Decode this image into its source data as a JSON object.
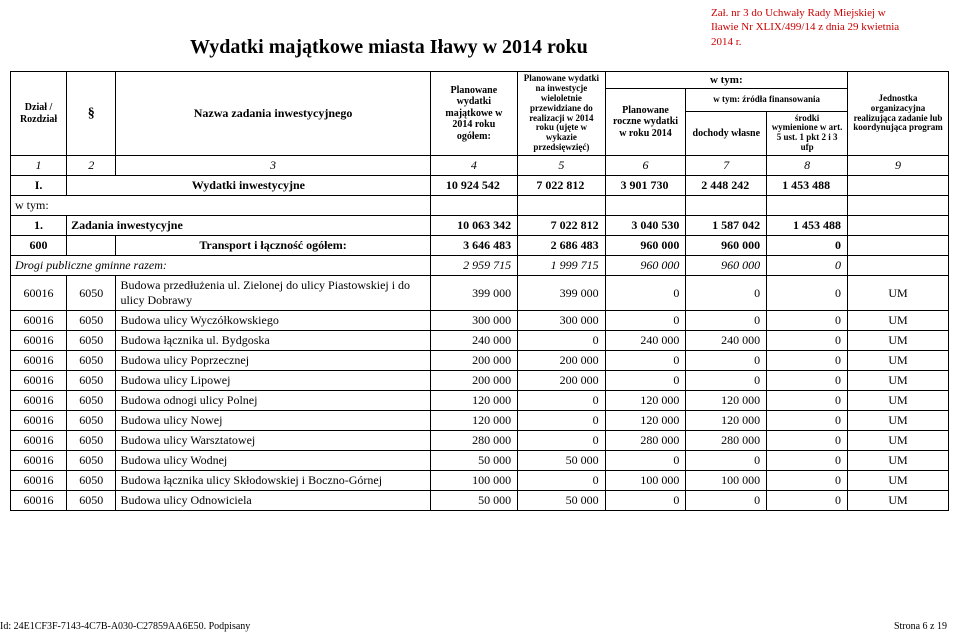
{
  "attachment": {
    "line1": "Zał. nr 3 do Uchwały Rady Miejskiej w",
    "line2": "Iławie Nr XLIX/499/14  z dnia 29 kwietnia",
    "line3": "2014 r."
  },
  "title": "Wydatki majątkowe miasta Iławy w 2014 roku",
  "header": {
    "dzial_rozdzial": "Dział / Rozdział",
    "paragraph_symbol": "§",
    "nazwa": "Nazwa zadania inwestycyjnego",
    "planowane_wydatki_ogolem": "Planowane wydatki majątkowe w 2014 roku ogółem:",
    "planowane_wydatki_inwestycje": "Planowane wydatki na inwestycje wieloletnie przewidziane do realizacji w 2014 roku (ujęte w wykazie przedsięwzięć)",
    "planowane_roczne": "Planowane roczne wydatki w roku 2014",
    "w_tym": "w tym:",
    "w_tym_zrodla": "w tym: źródła finansowania",
    "dochody_wlasne": "dochody własne",
    "srodki_art": "środki wymienione w art. 5 ust. 1 pkt 2 i 3 ufp",
    "jednostka": "Jednostka organizacyjna realizująca zadanie lub koordynująca program",
    "col_nums": [
      "1",
      "2",
      "3",
      "4",
      "5",
      "6",
      "7",
      "8",
      "9"
    ]
  },
  "sections": {
    "wydatki_inwestycyjne": {
      "label_num": "I.",
      "label": "Wydatki inwestycyjne",
      "vals": [
        "10 924 542",
        "7 022 812",
        "3 901 730",
        "2 448 242",
        "1 453 488",
        ""
      ]
    },
    "w_tym_label": "w tym:",
    "zadania_inwestycyjne": {
      "label_num": "1.",
      "label": "Zadania inwestycyjne",
      "vals": [
        "10 063 342",
        "7 022 812",
        "3 040 530",
        "1 587 042",
        "1 453 488",
        ""
      ]
    }
  },
  "group_600": {
    "code": "600",
    "label": "Transport i łączność ogółem:",
    "vals": [
      "3 646 483",
      "2 686 483",
      "960 000",
      "960 000",
      "0",
      ""
    ]
  },
  "drogi_publiczne": {
    "label": "Drogi publiczne gminne razem:",
    "vals": [
      "2 959 715",
      "1 999 715",
      "960 000",
      "960 000",
      "0",
      ""
    ]
  },
  "rows": [
    {
      "dzial": "60016",
      "par": "6050",
      "nazwa": "Budowa przedłużenia ul. Zielonej do ulicy Piastowskiej i do ulicy Dobrawy",
      "v": [
        "399 000",
        "399 000",
        "0",
        "0",
        "0",
        "UM"
      ]
    },
    {
      "dzial": "60016",
      "par": "6050",
      "nazwa": "Budowa ulicy Wyczółkowskiego",
      "v": [
        "300 000",
        "300 000",
        "0",
        "0",
        "0",
        "UM"
      ]
    },
    {
      "dzial": "60016",
      "par": "6050",
      "nazwa": "Budowa łącznika ul. Bydgoska",
      "v": [
        "240 000",
        "0",
        "240 000",
        "240 000",
        "0",
        "UM"
      ]
    },
    {
      "dzial": "60016",
      "par": "6050",
      "nazwa": "Budowa ulicy Poprzecznej",
      "v": [
        "200 000",
        "200 000",
        "0",
        "0",
        "0",
        "UM"
      ]
    },
    {
      "dzial": "60016",
      "par": "6050",
      "nazwa": "Budowa ulicy Lipowej",
      "v": [
        "200 000",
        "200 000",
        "0",
        "0",
        "0",
        "UM"
      ]
    },
    {
      "dzial": "60016",
      "par": "6050",
      "nazwa": "Budowa odnogi ulicy Polnej",
      "v": [
        "120 000",
        "0",
        "120 000",
        "120 000",
        "0",
        "UM"
      ]
    },
    {
      "dzial": "60016",
      "par": "6050",
      "nazwa": "Budowa ulicy Nowej",
      "v": [
        "120 000",
        "0",
        "120 000",
        "120 000",
        "0",
        "UM"
      ]
    },
    {
      "dzial": "60016",
      "par": "6050",
      "nazwa": "Budowa ulicy Warsztatowej",
      "v": [
        "280 000",
        "0",
        "280 000",
        "280 000",
        "0",
        "UM"
      ]
    },
    {
      "dzial": "60016",
      "par": "6050",
      "nazwa": "Budowa ulicy Wodnej",
      "v": [
        "50 000",
        "50 000",
        "0",
        "0",
        "0",
        "UM"
      ]
    },
    {
      "dzial": "60016",
      "par": "6050",
      "nazwa": "Budowa łącznika ulicy Skłodowskiej i Boczno-Górnej",
      "v": [
        "100 000",
        "0",
        "100 000",
        "100 000",
        "0",
        "UM"
      ]
    },
    {
      "dzial": "60016",
      "par": "6050",
      "nazwa": "Budowa ulicy Odnowiciela",
      "v": [
        "50 000",
        "50 000",
        "0",
        "0",
        "0",
        "UM"
      ]
    }
  ],
  "footer": {
    "left": "Id: 24E1CF3F-7143-4C7B-A030-C27859AA6E50. Podpisany",
    "right": "Strona 6 z 19"
  }
}
